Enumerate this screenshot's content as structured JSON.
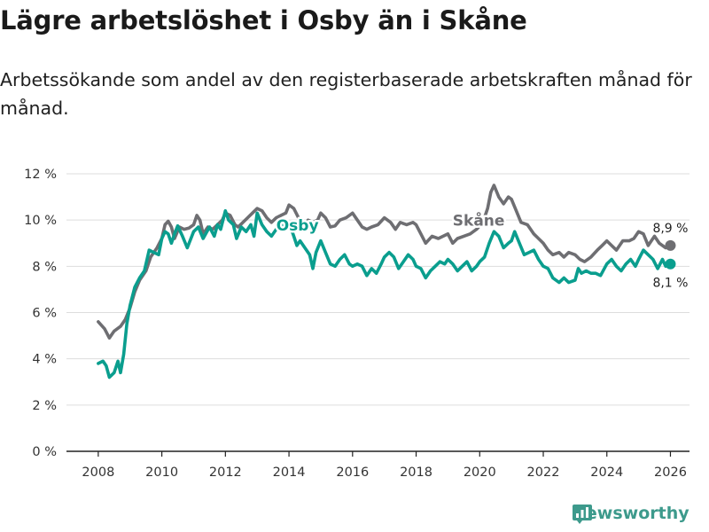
{
  "title": "Lägre arbetslöshet i Osby än i Skåne",
  "subtitle": "Arbetssökande som andel av den registerbaserade arbetskraften månad för månad.",
  "brand": {
    "name": "Newsworthy",
    "icon": "newsworthy-logo-icon"
  },
  "colors": {
    "osby": "#0a9e8e",
    "skane": "#6e6e72",
    "grid": "#dddddd",
    "axis": "#222222"
  },
  "chart_data": {
    "type": "line",
    "xlim": [
      2007,
      2026.6
    ],
    "ylim": [
      0,
      12
    ],
    "y_ticks": [
      0,
      2,
      4,
      6,
      8,
      10,
      12
    ],
    "y_tick_labels": [
      "0 %",
      "2 %",
      "4 %",
      "6 %",
      "8 %",
      "10 %",
      "12 %"
    ],
    "x_ticks": [
      2008,
      2010,
      2012,
      2014,
      2016,
      2018,
      2020,
      2022,
      2024,
      2026
    ],
    "x_tick_labels": [
      "2008",
      "2010",
      "2012",
      "2014",
      "2016",
      "2018",
      "2020",
      "2022",
      "2024",
      "2026"
    ],
    "grid": true,
    "series": [
      {
        "name": "Skåne",
        "color": "#6e6e72",
        "end_label": "8,9 %",
        "points": [
          [
            2008.0,
            5.6
          ],
          [
            2008.2,
            5.3
          ],
          [
            2008.35,
            4.9
          ],
          [
            2008.5,
            5.2
          ],
          [
            2008.7,
            5.4
          ],
          [
            2008.85,
            5.7
          ],
          [
            2009.0,
            6.2
          ],
          [
            2009.15,
            6.9
          ],
          [
            2009.3,
            7.4
          ],
          [
            2009.5,
            7.8
          ],
          [
            2009.65,
            8.4
          ],
          [
            2009.85,
            8.8
          ],
          [
            2010.0,
            9.2
          ],
          [
            2010.1,
            9.8
          ],
          [
            2010.2,
            9.95
          ],
          [
            2010.3,
            9.7
          ],
          [
            2010.4,
            9.2
          ],
          [
            2010.55,
            9.7
          ],
          [
            2010.7,
            9.6
          ],
          [
            2010.85,
            9.65
          ],
          [
            2011.0,
            9.8
          ],
          [
            2011.1,
            10.2
          ],
          [
            2011.2,
            10.0
          ],
          [
            2011.3,
            9.4
          ],
          [
            2011.45,
            9.7
          ],
          [
            2011.6,
            9.6
          ],
          [
            2011.75,
            9.8
          ],
          [
            2011.9,
            10.0
          ],
          [
            2012.0,
            10.3
          ],
          [
            2012.15,
            10.2
          ],
          [
            2012.3,
            9.8
          ],
          [
            2012.4,
            9.7
          ],
          [
            2012.55,
            9.9
          ],
          [
            2012.7,
            10.1
          ],
          [
            2012.85,
            10.3
          ],
          [
            2013.0,
            10.5
          ],
          [
            2013.15,
            10.4
          ],
          [
            2013.3,
            10.1
          ],
          [
            2013.45,
            9.9
          ],
          [
            2013.6,
            10.1
          ],
          [
            2013.75,
            10.2
          ],
          [
            2013.9,
            10.3
          ],
          [
            2014.0,
            10.65
          ],
          [
            2014.15,
            10.5
          ],
          [
            2014.3,
            10.1
          ],
          [
            2014.5,
            9.8
          ],
          [
            2014.6,
            10.0
          ],
          [
            2014.75,
            9.9
          ],
          [
            2014.9,
            10.0
          ],
          [
            2015.0,
            10.3
          ],
          [
            2015.15,
            10.1
          ],
          [
            2015.3,
            9.7
          ],
          [
            2015.45,
            9.75
          ],
          [
            2015.6,
            10.0
          ],
          [
            2015.8,
            10.1
          ],
          [
            2016.0,
            10.3
          ],
          [
            2016.15,
            10.0
          ],
          [
            2016.3,
            9.7
          ],
          [
            2016.45,
            9.6
          ],
          [
            2016.6,
            9.7
          ],
          [
            2016.8,
            9.8
          ],
          [
            2017.0,
            10.1
          ],
          [
            2017.2,
            9.9
          ],
          [
            2017.35,
            9.6
          ],
          [
            2017.5,
            9.9
          ],
          [
            2017.7,
            9.8
          ],
          [
            2017.9,
            9.9
          ],
          [
            2018.0,
            9.8
          ],
          [
            2018.15,
            9.4
          ],
          [
            2018.3,
            9.0
          ],
          [
            2018.5,
            9.3
          ],
          [
            2018.7,
            9.2
          ],
          [
            2018.85,
            9.3
          ],
          [
            2019.0,
            9.4
          ],
          [
            2019.15,
            9.0
          ],
          [
            2019.3,
            9.2
          ],
          [
            2019.5,
            9.3
          ],
          [
            2019.7,
            9.4
          ],
          [
            2019.9,
            9.6
          ],
          [
            2020.1,
            9.9
          ],
          [
            2020.25,
            10.5
          ],
          [
            2020.35,
            11.2
          ],
          [
            2020.45,
            11.5
          ],
          [
            2020.6,
            11.0
          ],
          [
            2020.75,
            10.7
          ],
          [
            2020.9,
            11.0
          ],
          [
            2021.0,
            10.9
          ],
          [
            2021.15,
            10.4
          ],
          [
            2021.3,
            9.9
          ],
          [
            2021.5,
            9.8
          ],
          [
            2021.7,
            9.4
          ],
          [
            2021.85,
            9.2
          ],
          [
            2022.0,
            9.0
          ],
          [
            2022.15,
            8.7
          ],
          [
            2022.3,
            8.5
          ],
          [
            2022.5,
            8.6
          ],
          [
            2022.65,
            8.4
          ],
          [
            2022.8,
            8.6
          ],
          [
            2023.0,
            8.5
          ],
          [
            2023.15,
            8.3
          ],
          [
            2023.3,
            8.2
          ],
          [
            2023.5,
            8.4
          ],
          [
            2023.7,
            8.7
          ],
          [
            2023.85,
            8.9
          ],
          [
            2024.0,
            9.1
          ],
          [
            2024.15,
            8.9
          ],
          [
            2024.3,
            8.7
          ],
          [
            2024.5,
            9.1
          ],
          [
            2024.7,
            9.1
          ],
          [
            2024.85,
            9.2
          ],
          [
            2025.0,
            9.5
          ],
          [
            2025.15,
            9.4
          ],
          [
            2025.3,
            8.9
          ],
          [
            2025.5,
            9.3
          ],
          [
            2025.65,
            9.0
          ],
          [
            2025.85,
            8.8
          ],
          [
            2026.0,
            8.9
          ]
        ]
      },
      {
        "name": "Osby",
        "color": "#0a9e8e",
        "end_label": "8,1 %",
        "points": [
          [
            2008.0,
            3.8
          ],
          [
            2008.15,
            3.9
          ],
          [
            2008.25,
            3.7
          ],
          [
            2008.35,
            3.2
          ],
          [
            2008.5,
            3.4
          ],
          [
            2008.62,
            3.9
          ],
          [
            2008.7,
            3.4
          ],
          [
            2008.8,
            4.2
          ],
          [
            2008.9,
            5.5
          ],
          [
            2009.0,
            6.3
          ],
          [
            2009.15,
            7.1
          ],
          [
            2009.3,
            7.5
          ],
          [
            2009.45,
            7.8
          ],
          [
            2009.6,
            8.7
          ],
          [
            2009.75,
            8.6
          ],
          [
            2009.9,
            8.5
          ],
          [
            2010.0,
            9.2
          ],
          [
            2010.1,
            9.5
          ],
          [
            2010.2,
            9.4
          ],
          [
            2010.3,
            9.0
          ],
          [
            2010.4,
            9.4
          ],
          [
            2010.5,
            9.75
          ],
          [
            2010.65,
            9.3
          ],
          [
            2010.8,
            8.8
          ],
          [
            2011.0,
            9.5
          ],
          [
            2011.15,
            9.7
          ],
          [
            2011.3,
            9.2
          ],
          [
            2011.5,
            9.7
          ],
          [
            2011.65,
            9.3
          ],
          [
            2011.75,
            9.8
          ],
          [
            2011.85,
            9.6
          ],
          [
            2012.0,
            10.4
          ],
          [
            2012.1,
            10.0
          ],
          [
            2012.25,
            9.8
          ],
          [
            2012.35,
            9.2
          ],
          [
            2012.5,
            9.7
          ],
          [
            2012.65,
            9.5
          ],
          [
            2012.8,
            9.8
          ],
          [
            2012.9,
            9.3
          ],
          [
            2013.0,
            10.3
          ],
          [
            2013.15,
            9.8
          ],
          [
            2013.3,
            9.5
          ],
          [
            2013.45,
            9.3
          ],
          [
            2013.6,
            9.6
          ],
          [
            2013.75,
            9.8
          ],
          [
            2013.9,
            9.6
          ],
          [
            2014.0,
            9.9
          ],
          [
            2014.15,
            9.3
          ],
          [
            2014.25,
            8.9
          ],
          [
            2014.35,
            9.1
          ],
          [
            2014.5,
            8.8
          ],
          [
            2014.65,
            8.5
          ],
          [
            2014.75,
            7.9
          ],
          [
            2014.85,
            8.6
          ],
          [
            2015.0,
            9.1
          ],
          [
            2015.15,
            8.6
          ],
          [
            2015.3,
            8.1
          ],
          [
            2015.45,
            8.0
          ],
          [
            2015.6,
            8.3
          ],
          [
            2015.75,
            8.5
          ],
          [
            2015.9,
            8.1
          ],
          [
            2016.0,
            8.0
          ],
          [
            2016.15,
            8.1
          ],
          [
            2016.3,
            8.0
          ],
          [
            2016.45,
            7.6
          ],
          [
            2016.6,
            7.9
          ],
          [
            2016.75,
            7.7
          ],
          [
            2016.9,
            8.1
          ],
          [
            2017.0,
            8.4
          ],
          [
            2017.15,
            8.6
          ],
          [
            2017.3,
            8.4
          ],
          [
            2017.45,
            7.9
          ],
          [
            2017.6,
            8.2
          ],
          [
            2017.75,
            8.5
          ],
          [
            2017.9,
            8.3
          ],
          [
            2018.0,
            8.0
          ],
          [
            2018.15,
            7.9
          ],
          [
            2018.3,
            7.5
          ],
          [
            2018.45,
            7.8
          ],
          [
            2018.6,
            8.0
          ],
          [
            2018.75,
            8.2
          ],
          [
            2018.9,
            8.1
          ],
          [
            2019.0,
            8.3
          ],
          [
            2019.15,
            8.1
          ],
          [
            2019.3,
            7.8
          ],
          [
            2019.45,
            8.0
          ],
          [
            2019.6,
            8.2
          ],
          [
            2019.75,
            7.8
          ],
          [
            2019.9,
            8.0
          ],
          [
            2020.0,
            8.2
          ],
          [
            2020.15,
            8.4
          ],
          [
            2020.3,
            9.0
          ],
          [
            2020.45,
            9.5
          ],
          [
            2020.6,
            9.3
          ],
          [
            2020.75,
            8.8
          ],
          [
            2020.9,
            9.0
          ],
          [
            2021.0,
            9.1
          ],
          [
            2021.1,
            9.5
          ],
          [
            2021.25,
            9.0
          ],
          [
            2021.4,
            8.5
          ],
          [
            2021.55,
            8.6
          ],
          [
            2021.7,
            8.7
          ],
          [
            2021.85,
            8.3
          ],
          [
            2022.0,
            8.0
          ],
          [
            2022.15,
            7.9
          ],
          [
            2022.3,
            7.5
          ],
          [
            2022.5,
            7.3
          ],
          [
            2022.65,
            7.5
          ],
          [
            2022.8,
            7.3
          ],
          [
            2023.0,
            7.4
          ],
          [
            2023.1,
            7.9
          ],
          [
            2023.2,
            7.7
          ],
          [
            2023.35,
            7.8
          ],
          [
            2023.5,
            7.7
          ],
          [
            2023.65,
            7.7
          ],
          [
            2023.8,
            7.6
          ],
          [
            2024.0,
            8.1
          ],
          [
            2024.15,
            8.3
          ],
          [
            2024.3,
            8.0
          ],
          [
            2024.45,
            7.8
          ],
          [
            2024.6,
            8.1
          ],
          [
            2024.75,
            8.3
          ],
          [
            2024.9,
            8.0
          ],
          [
            2025.0,
            8.3
          ],
          [
            2025.15,
            8.7
          ],
          [
            2025.3,
            8.5
          ],
          [
            2025.45,
            8.3
          ],
          [
            2025.6,
            7.9
          ],
          [
            2025.75,
            8.3
          ],
          [
            2025.85,
            8.0
          ],
          [
            2026.0,
            8.1
          ]
        ]
      }
    ],
    "annotations": [
      {
        "text": "Osby",
        "series": "Osby"
      },
      {
        "text": "Skåne",
        "series": "Skåne"
      }
    ]
  }
}
